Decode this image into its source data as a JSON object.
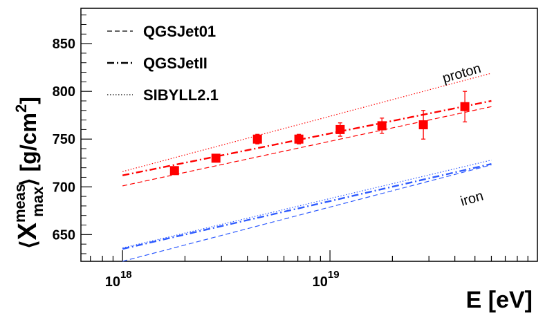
{
  "chart_data": {
    "type": "scatter",
    "title": "",
    "xlabel": "E [eV]",
    "ylabel_parts": {
      "open": "⟨",
      "main": "X",
      "sup": "meas",
      "sub": "max",
      "close": "⟩",
      "unit_open": " [g/cm",
      "unit_exp": "2",
      "unit_close": "]"
    },
    "x_scale": "log",
    "xlim": [
      6.3e+17,
      1e+20
    ],
    "ylim": [
      622,
      887
    ],
    "x_ticks": [
      {
        "value": 1e+18,
        "base": "10",
        "exp": "18"
      },
      {
        "value": 1e+19,
        "base": "10",
        "exp": "19"
      }
    ],
    "y_ticks": [
      650,
      700,
      750,
      800,
      850
    ],
    "grid": false,
    "legend_position": "top-left",
    "colors": {
      "proton": "#ff0000",
      "iron": "#2e5bff",
      "data": "#ff0000"
    },
    "legend": [
      {
        "label": "QGSJet01",
        "style": "dashed"
      },
      {
        "label": "QGSJetII",
        "style": "dashdot"
      },
      {
        "label": "SIBYLL2.1",
        "style": "dotted"
      }
    ],
    "annotations": {
      "proton": "proton",
      "iron": "iron"
    },
    "series": [
      {
        "name": "QGSJet01",
        "primary": "proton",
        "style": "dashed",
        "x": [
          1e+18,
          6e+19
        ],
        "y": [
          701,
          784
        ]
      },
      {
        "name": "QGSJetII",
        "primary": "proton",
        "style": "dashdot",
        "x": [
          1e+18,
          6e+19
        ],
        "y": [
          712,
          790
        ]
      },
      {
        "name": "SIBYLL2.1",
        "primary": "proton",
        "style": "dotted",
        "x": [
          1e+18,
          6e+19
        ],
        "y": [
          716,
          819
        ]
      },
      {
        "name": "QGSJet01",
        "primary": "iron",
        "style": "dashed",
        "x": [
          1e+18,
          6e+19
        ],
        "y": [
          622,
          723
        ]
      },
      {
        "name": "QGSJetII",
        "primary": "iron",
        "style": "dashdot",
        "x": [
          1e+18,
          6e+19
        ],
        "y": [
          635,
          724
        ]
      },
      {
        "name": "SIBYLL2.1",
        "primary": "iron",
        "style": "dotted",
        "x": [
          1e+18,
          6e+19
        ],
        "y": [
          636,
          728
        ]
      }
    ],
    "data_points": {
      "x": [
        1.78e+18,
        2.82e+18,
        4.47e+18,
        7.08e+18,
        1.12e+19,
        1.78e+19,
        2.82e+19,
        4.47e+19
      ],
      "y": [
        717,
        730,
        750,
        750,
        760,
        764,
        765,
        784
      ],
      "yerr": [
        4,
        3,
        5,
        5,
        7,
        8,
        15,
        16
      ]
    }
  }
}
